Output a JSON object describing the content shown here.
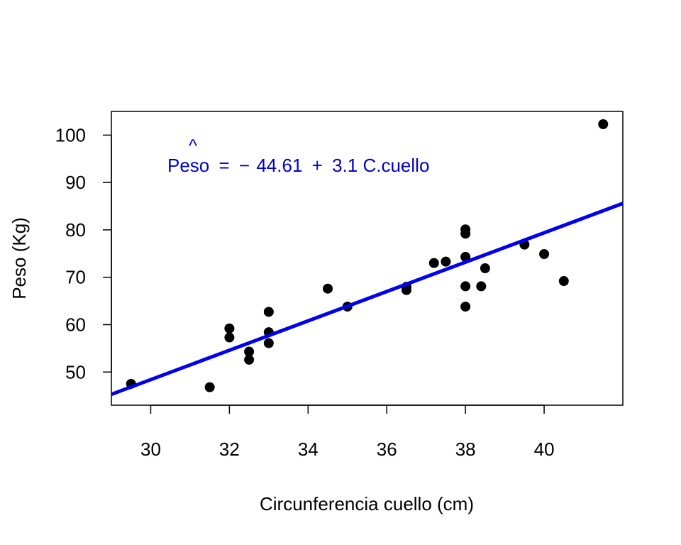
{
  "chart_data": {
    "type": "scatter",
    "title": "",
    "xlabel": "Circunferencia cuello (cm)",
    "ylabel": "Peso (Kg)",
    "xlim": [
      29,
      42
    ],
    "ylim": [
      43,
      105
    ],
    "x_ticks": [
      30,
      32,
      34,
      36,
      38,
      40
    ],
    "y_ticks": [
      50,
      60,
      70,
      80,
      90,
      100
    ],
    "grid": false,
    "points": [
      {
        "x": 29.5,
        "y": 47.5
      },
      {
        "x": 31.5,
        "y": 46.8
      },
      {
        "x": 32.0,
        "y": 59.2
      },
      {
        "x": 32.0,
        "y": 57.3
      },
      {
        "x": 32.5,
        "y": 54.3
      },
      {
        "x": 32.5,
        "y": 52.6
      },
      {
        "x": 33.0,
        "y": 62.7
      },
      {
        "x": 33.0,
        "y": 58.4
      },
      {
        "x": 33.0,
        "y": 56.1
      },
      {
        "x": 34.5,
        "y": 67.6
      },
      {
        "x": 35.0,
        "y": 63.8
      },
      {
        "x": 36.5,
        "y": 68.0
      },
      {
        "x": 36.5,
        "y": 67.3
      },
      {
        "x": 37.2,
        "y": 73.0
      },
      {
        "x": 37.5,
        "y": 73.3
      },
      {
        "x": 38.0,
        "y": 80.1
      },
      {
        "x": 38.0,
        "y": 79.2
      },
      {
        "x": 38.0,
        "y": 74.3
      },
      {
        "x": 38.0,
        "y": 68.1
      },
      {
        "x": 38.0,
        "y": 63.8
      },
      {
        "x": 38.4,
        "y": 68.1
      },
      {
        "x": 38.5,
        "y": 71.9
      },
      {
        "x": 39.5,
        "y": 76.9
      },
      {
        "x": 40.0,
        "y": 74.9
      },
      {
        "x": 40.5,
        "y": 69.2
      },
      {
        "x": 41.5,
        "y": 102.3
      }
    ],
    "regression": {
      "intercept": -44.61,
      "slope": 3.1
    },
    "equation": {
      "hat_symbol": "^",
      "lhs": "Peso",
      "equals": "=",
      "minus": "−",
      "intercept_text": "44.61",
      "plus": "+",
      "slope_text": "3.1",
      "variable": "C.cuello"
    },
    "colors": {
      "points": "#000000",
      "line": "#0000ee",
      "equation": "#0000cd",
      "axes": "#000000"
    }
  }
}
